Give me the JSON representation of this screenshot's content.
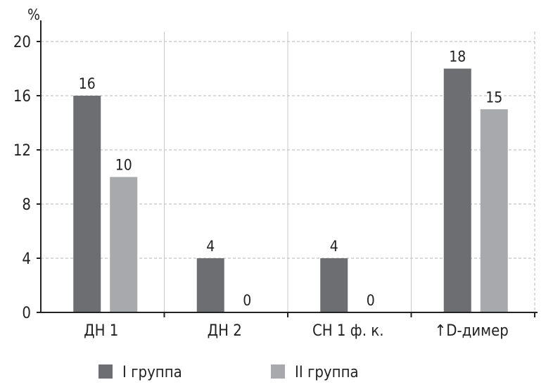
{
  "chart_data": {
    "type": "bar",
    "unit_label": "%",
    "categories": [
      "ДН 1",
      "ДН 2",
      "СН 1 ф. к.",
      "↑D-димер"
    ],
    "series": [
      {
        "name": "I группа",
        "values": [
          16,
          4,
          4,
          18
        ],
        "labels": [
          "16",
          "4",
          "4",
          "18"
        ],
        "color": "#6d6e71"
      },
      {
        "name": "II группа",
        "values": [
          10,
          0,
          0,
          15
        ],
        "labels": [
          "10",
          "0",
          "0",
          "15"
        ],
        "color": "#a7a9ac"
      }
    ],
    "ylim": [
      0,
      20
    ],
    "yticks": [
      0,
      4,
      8,
      12,
      16,
      20
    ],
    "grid": true,
    "legend_position": "bottom"
  }
}
